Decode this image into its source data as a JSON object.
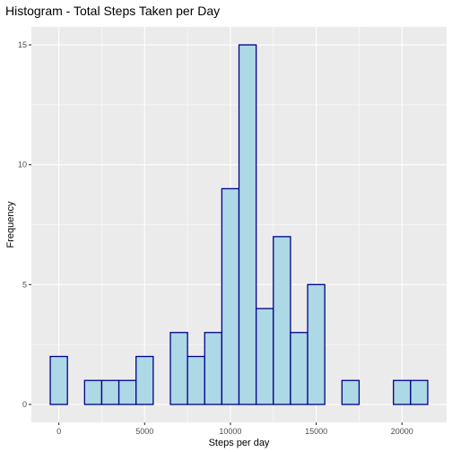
{
  "chart_data": {
    "type": "bar",
    "title": "Histogram - Total Steps Taken per Day",
    "xlabel": "Steps per day",
    "ylabel": "Frequency",
    "bin_width": 1000,
    "bins": [
      {
        "x": 0,
        "count": 2
      },
      {
        "x": 1000,
        "count": 0
      },
      {
        "x": 2000,
        "count": 1
      },
      {
        "x": 3000,
        "count": 1
      },
      {
        "x": 4000,
        "count": 1
      },
      {
        "x": 5000,
        "count": 2
      },
      {
        "x": 6000,
        "count": 0
      },
      {
        "x": 7000,
        "count": 3
      },
      {
        "x": 8000,
        "count": 2
      },
      {
        "x": 9000,
        "count": 3
      },
      {
        "x": 10000,
        "count": 9
      },
      {
        "x": 11000,
        "count": 15
      },
      {
        "x": 12000,
        "count": 4
      },
      {
        "x": 13000,
        "count": 7
      },
      {
        "x": 14000,
        "count": 3
      },
      {
        "x": 15000,
        "count": 5
      },
      {
        "x": 16000,
        "count": 0
      },
      {
        "x": 17000,
        "count": 1
      },
      {
        "x": 18000,
        "count": 0
      },
      {
        "x": 19000,
        "count": 0
      },
      {
        "x": 20000,
        "count": 1
      },
      {
        "x": 21000,
        "count": 1
      }
    ],
    "xlim": [
      -1600,
      22600
    ],
    "ylim": [
      -0.75,
      15.75
    ],
    "x_ticks": [
      {
        "value": 0,
        "label": "0"
      },
      {
        "value": 5000,
        "label": "5000"
      },
      {
        "value": 10000,
        "label": "10000"
      },
      {
        "value": 15000,
        "label": "15000"
      },
      {
        "value": 20000,
        "label": "20000"
      }
    ],
    "y_ticks": [
      {
        "value": 0,
        "label": "0"
      },
      {
        "value": 5,
        "label": "5"
      },
      {
        "value": 10,
        "label": "10"
      },
      {
        "value": 15,
        "label": "15"
      }
    ],
    "grid": true,
    "colors": {
      "bar_fill": "#add8e6",
      "bar_outline": "#00008b",
      "panel_background": "#ebebeb",
      "grid": "#ffffff"
    }
  }
}
